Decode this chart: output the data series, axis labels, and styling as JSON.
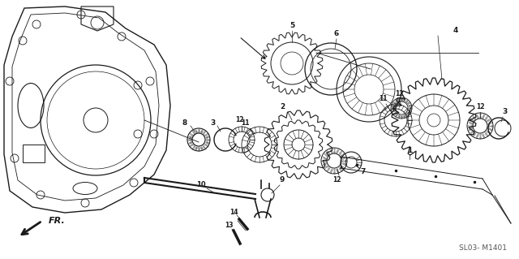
{
  "bg_color": "#ffffff",
  "line_color": "#1a1a1a",
  "fig_width": 6.4,
  "fig_height": 3.19,
  "dpi": 100,
  "diagram_code": "SL03- M1401",
  "fr_label": "FR."
}
